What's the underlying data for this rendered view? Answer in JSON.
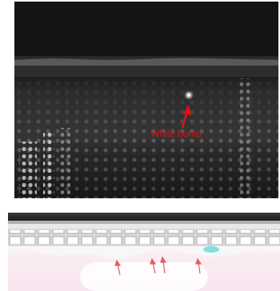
{
  "figure": {
    "top_panel": {
      "description_label": "",
      "annotation": {
        "text": "White bump",
        "color": "#e01010"
      }
    },
    "bottom_panel": {
      "arrow_color": "#e06060"
    }
  }
}
